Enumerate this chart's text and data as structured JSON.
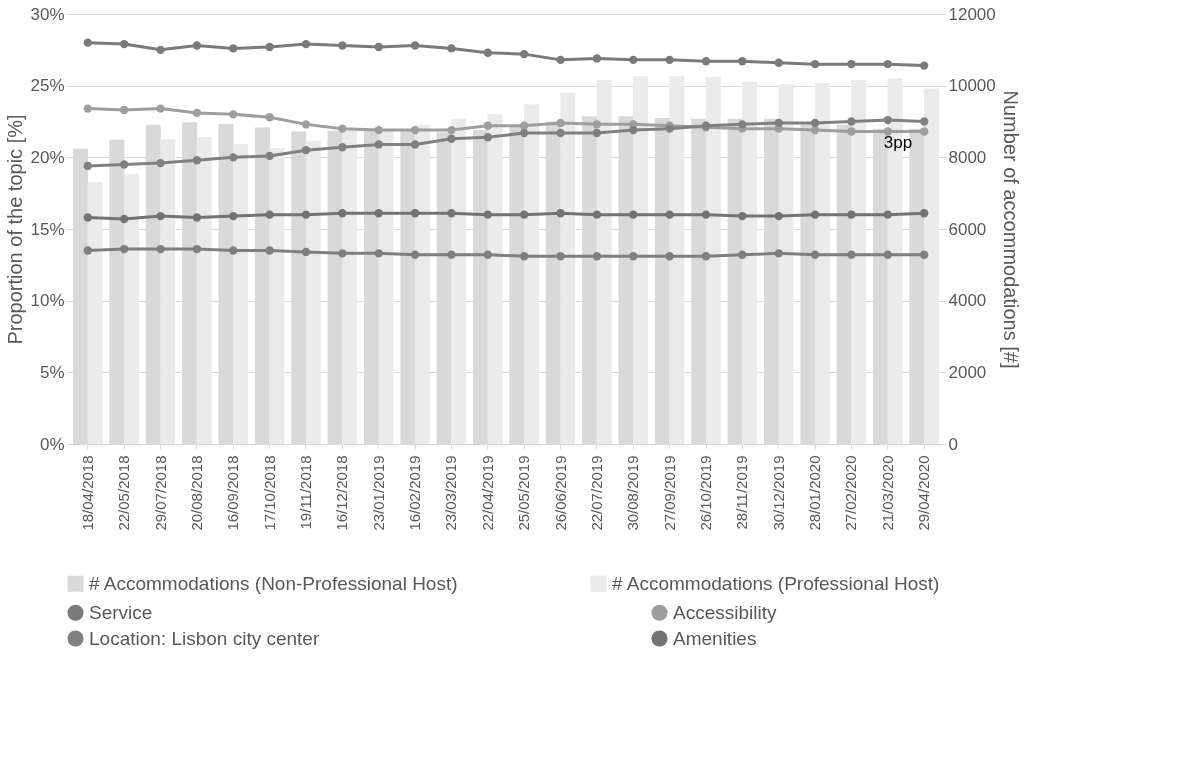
{
  "chart_data": {
    "type": "line",
    "ylabel": "Proportion of the topic [%]",
    "y2label": "Number of accommodations [#]",
    "categories": [
      "18/04/2018",
      "22/05/2018",
      "29/07/2018",
      "20/08/2018",
      "16/09/2018",
      "17/10/2018",
      "19/11/2018",
      "16/12/2018",
      "23/01/2019",
      "16/02/2019",
      "23/03/2019",
      "22/04/2019",
      "25/05/2019",
      "26/06/2019",
      "22/07/2019",
      "30/08/2019",
      "27/09/2019",
      "26/10/2019",
      "28/11/2019",
      "30/12/2019",
      "28/01/2020",
      "27/02/2020",
      "21/03/2020",
      "29/04/2020"
    ],
    "series": [
      {
        "name": "# Accommodations (Non-Professional Host)",
        "type": "bar",
        "axis": "y2",
        "color": "#d9d9d9",
        "values": [
          8240,
          8490,
          8910,
          8980,
          8930,
          8830,
          8720,
          8740,
          8760,
          8740,
          8700,
          8760,
          8860,
          9000,
          9150,
          9150,
          9100,
          9080,
          9080,
          9080,
          8980,
          8910,
          8800,
          8800
        ]
      },
      {
        "name": "# Accommodations (Professional Host)",
        "type": "bar",
        "axis": "y2",
        "color": "#ebebeb",
        "values": [
          7310,
          7540,
          8510,
          8570,
          8370,
          8260,
          8470,
          8740,
          8800,
          8910,
          9080,
          9200,
          9480,
          9800,
          10160,
          10260,
          10260,
          10240,
          10110,
          10040,
          10070,
          10160,
          10210,
          9920
        ]
      },
      {
        "name": "Service",
        "color": "#7a7a7a",
        "values": [
          28.0,
          27.9,
          27.5,
          27.8,
          27.6,
          27.7,
          27.9,
          27.8,
          27.7,
          27.8,
          27.6,
          27.3,
          27.2,
          26.8,
          26.9,
          26.8,
          26.8,
          26.7,
          26.7,
          26.6,
          26.5,
          26.5,
          26.5,
          26.4
        ]
      },
      {
        "name": "Accessibility",
        "color": "#9e9e9e",
        "values": [
          23.4,
          23.3,
          23.4,
          23.1,
          23.0,
          22.8,
          22.3,
          22.0,
          21.9,
          21.9,
          21.9,
          22.2,
          22.2,
          22.4,
          22.3,
          22.3,
          22.2,
          22.1,
          22.0,
          22.0,
          21.9,
          21.8,
          21.8,
          21.8
        ]
      },
      {
        "name": "Location: Lisbon city center",
        "color": "#808080",
        "values": [
          19.4,
          19.5,
          19.6,
          19.8,
          20.0,
          20.1,
          20.5,
          20.7,
          20.9,
          20.9,
          21.3,
          21.4,
          21.7,
          21.7,
          21.7,
          21.9,
          22.0,
          22.2,
          22.3,
          22.4,
          22.4,
          22.5,
          22.6,
          22.5
        ]
      },
      {
        "name": "Amenities",
        "color": "#737373",
        "values": [
          15.8,
          15.7,
          15.9,
          15.8,
          15.9,
          16.0,
          16.0,
          16.1,
          16.1,
          16.1,
          16.1,
          16.0,
          16.0,
          16.1,
          16.0,
          16.0,
          16.0,
          16.0,
          15.9,
          15.9,
          16.0,
          16.0,
          16.0,
          16.1
        ]
      },
      {
        "color": "#7f7f7f",
        "values": [
          13.5,
          13.6,
          13.6,
          13.6,
          13.5,
          13.5,
          13.4,
          13.3,
          13.3,
          13.2,
          13.2,
          13.2,
          13.1,
          13.1,
          13.1,
          13.1,
          13.1,
          13.1,
          13.2,
          13.3,
          13.2,
          13.2,
          13.2,
          13.2
        ]
      }
    ],
    "ylim": [
      0,
      30
    ],
    "yticks": [
      {
        "value": 0,
        "label": "0%"
      },
      {
        "value": 5,
        "label": "5%"
      },
      {
        "value": 10,
        "label": "10%"
      },
      {
        "value": 15,
        "label": "15%"
      },
      {
        "value": 20,
        "label": "20%"
      },
      {
        "value": 25,
        "label": "25%"
      },
      {
        "value": 30,
        "label": "30%"
      }
    ],
    "y2lim": [
      0,
      12000
    ],
    "y2ticks": [
      0,
      2000,
      4000,
      6000,
      8000,
      10000,
      12000
    ],
    "annotations": [
      {
        "text": "3pp",
        "x": "29/04/2020",
        "y": 21
      }
    ],
    "grid": "y",
    "legend": "bottom",
    "marker": "circle",
    "line_style": "solid"
  }
}
